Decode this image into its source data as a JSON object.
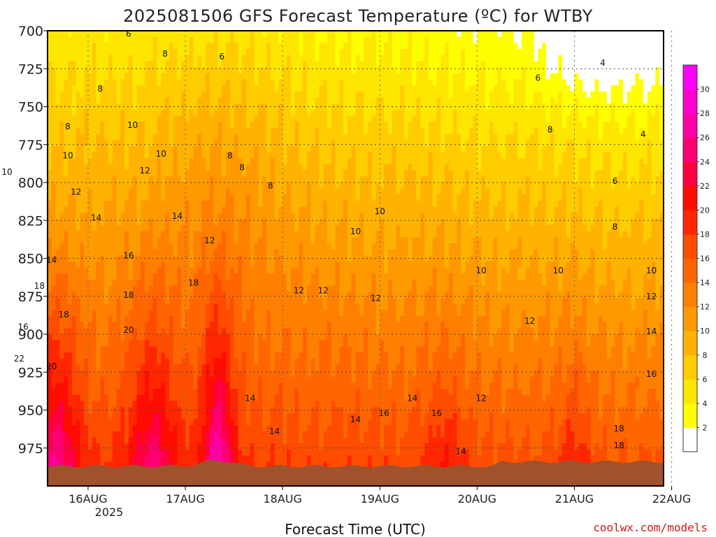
{
  "chart_data": {
    "type": "heatmap",
    "title": "2025081506 GFS Forecast Temperature (ºC) for WTBY",
    "xlabel": "Forecast Time (UTC)",
    "credit": "coolwx.com/models",
    "y_ticks": [
      "700",
      "725",
      "750",
      "775",
      "800",
      "825",
      "850",
      "875",
      "900",
      "925",
      "950",
      "975"
    ],
    "y_levels": [
      700,
      725,
      750,
      775,
      800,
      825,
      850,
      875,
      900,
      925,
      950,
      975
    ],
    "x_ticks": [
      "16AUG",
      "17AUG",
      "18AUG",
      "19AUG",
      "20AUG",
      "21AUG",
      "22AUG"
    ],
    "x_tick_sub": "2025",
    "x_range_hours": [
      -10,
      142
    ],
    "y_range_hpa": [
      700,
      1000
    ],
    "colorbar_ticks": [
      "2",
      "4",
      "6",
      "8",
      "10",
      "12",
      "14",
      "16",
      "18",
      "20",
      "22",
      "24",
      "26",
      "28",
      "30"
    ],
    "colorbar_levels": [
      2,
      4,
      6,
      8,
      10,
      12,
      14,
      16,
      18,
      20,
      22,
      24,
      26,
      28,
      30
    ],
    "colors": [
      "#ffffff",
      "#ffff00",
      "#ffe600",
      "#ffcc00",
      "#ffb300",
      "#ff9900",
      "#ff8000",
      "#ff6600",
      "#ff4d00",
      "#ff2600",
      "#ff0d00",
      "#ff0040",
      "#ff0073",
      "#ff00a6",
      "#ff00cc",
      "#ff00ff"
    ],
    "ground_color": "#a0522d",
    "contour_labels": [
      {
        "text": "6",
        "t": 10,
        "p": 704
      },
      {
        "text": "8",
        "t": 19,
        "p": 717
      },
      {
        "text": "6",
        "t": 33,
        "p": 719
      },
      {
        "text": "4",
        "t": 127,
        "p": 723
      },
      {
        "text": "6",
        "t": 111,
        "p": 733
      },
      {
        "text": "8",
        "t": 3,
        "p": 740
      },
      {
        "text": "8",
        "t": -5,
        "p": 765
      },
      {
        "text": "10",
        "t": 11,
        "p": 764
      },
      {
        "text": "4",
        "t": 137,
        "p": 770
      },
      {
        "text": "8",
        "t": 114,
        "p": 767
      },
      {
        "text": "10",
        "t": -5,
        "p": 784
      },
      {
        "text": "10",
        "t": 18,
        "p": 783
      },
      {
        "text": "8",
        "t": 35,
        "p": 784
      },
      {
        "text": "12",
        "t": 14,
        "p": 794
      },
      {
        "text": "8",
        "t": 38,
        "p": 792
      },
      {
        "text": "10",
        "t": -20,
        "p": 795
      },
      {
        "text": "12",
        "t": -3,
        "p": 808
      },
      {
        "text": "8",
        "t": 45,
        "p": 804
      },
      {
        "text": "6",
        "t": 130,
        "p": 801
      },
      {
        "text": "10",
        "t": 72,
        "p": 821
      },
      {
        "text": "14",
        "t": 2,
        "p": 825
      },
      {
        "text": "14",
        "t": 22,
        "p": 824
      },
      {
        "text": "10",
        "t": 66,
        "p": 834
      },
      {
        "text": "8",
        "t": 130,
        "p": 831
      },
      {
        "text": "12",
        "t": 30,
        "p": 840
      },
      {
        "text": "14",
        "t": -9,
        "p": 853
      },
      {
        "text": "16",
        "t": 10,
        "p": 850
      },
      {
        "text": "10",
        "t": 116,
        "p": 860
      },
      {
        "text": "10",
        "t": 97,
        "p": 860
      },
      {
        "text": "10",
        "t": 139,
        "p": 860
      },
      {
        "text": "18",
        "t": -12,
        "p": 870
      },
      {
        "text": "18",
        "t": 26,
        "p": 868
      },
      {
        "text": "18",
        "t": 10,
        "p": 876
      },
      {
        "text": "12",
        "t": 52,
        "p": 873
      },
      {
        "text": "12",
        "t": 58,
        "p": 873
      },
      {
        "text": "12",
        "t": 71,
        "p": 878
      },
      {
        "text": "12",
        "t": 139,
        "p": 877
      },
      {
        "text": "18",
        "t": -6,
        "p": 889
      },
      {
        "text": "16",
        "t": -16,
        "p": 897
      },
      {
        "text": "20",
        "t": 10,
        "p": 899
      },
      {
        "text": "12",
        "t": 109,
        "p": 893
      },
      {
        "text": "14",
        "t": 139,
        "p": 900
      },
      {
        "text": "22",
        "t": -17,
        "p": 918
      },
      {
        "text": "20",
        "t": -9,
        "p": 923
      },
      {
        "text": "16",
        "t": 139,
        "p": 928
      },
      {
        "text": "14",
        "t": 40,
        "p": 944
      },
      {
        "text": "14",
        "t": 80,
        "p": 944
      },
      {
        "text": "12",
        "t": 97,
        "p": 944
      },
      {
        "text": "16",
        "t": 73,
        "p": 954
      },
      {
        "text": "16",
        "t": 86,
        "p": 954
      },
      {
        "text": "14",
        "t": 66,
        "p": 958
      },
      {
        "text": "14",
        "t": 46,
        "p": 966
      },
      {
        "text": "18",
        "t": 131,
        "p": 964
      },
      {
        "text": "18",
        "t": 131,
        "p": 975
      },
      {
        "text": "14",
        "t": 92,
        "p": 979
      }
    ]
  }
}
